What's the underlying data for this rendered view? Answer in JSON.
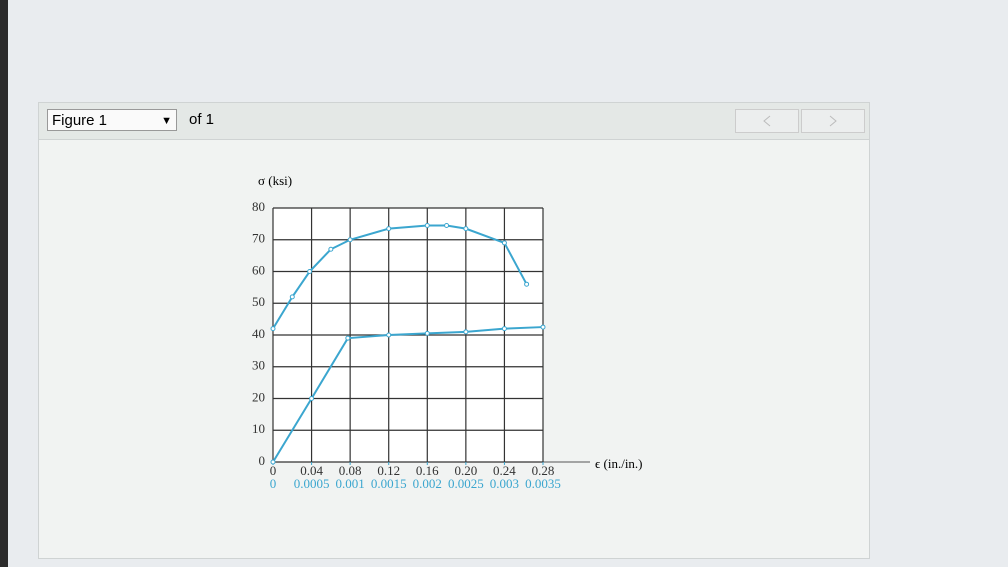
{
  "header": {
    "figure_select": "Figure 1",
    "of_label": "of 1"
  },
  "chart_data": {
    "type": "line",
    "y_label": "σ (ksi)",
    "x_label": "ϵ (in./in.)",
    "xlim": [
      0,
      0.28
    ],
    "xticks": [
      0,
      0.04,
      0.08,
      0.12,
      0.16,
      {
        "value": 0.2,
        "label": "0.20"
      },
      0.24,
      0.28
    ],
    "x2lim": [
      0,
      0.0035
    ],
    "x2ticks": [
      0,
      0.0005,
      0.001,
      0.0015,
      0.002,
      0.0025,
      0.003,
      0.0035
    ],
    "x2color": "#3ba6cf",
    "ylim": [
      0,
      80
    ],
    "yticks": [
      0,
      10,
      20,
      30,
      40,
      50,
      60,
      70,
      80
    ],
    "grid": true,
    "series": [
      {
        "color": "#3ba6cf",
        "x": [
          0,
          0.02,
          0.038,
          0.06,
          0.08,
          0.12,
          0.16,
          0.18,
          0.2,
          0.24,
          0.263
        ],
        "values": [
          42,
          52,
          60,
          67,
          70,
          73.5,
          74.5,
          74.5,
          73.5,
          69,
          56
        ]
      },
      {
        "color": "#3ba6cf",
        "axis": "x2",
        "x": [
          0,
          0.0005,
          0.00097,
          0.0015,
          0.002,
          0.0025,
          0.003,
          0.0035
        ],
        "values": [
          0,
          20,
          39,
          40,
          40.5,
          41,
          42,
          42.5
        ]
      }
    ]
  }
}
